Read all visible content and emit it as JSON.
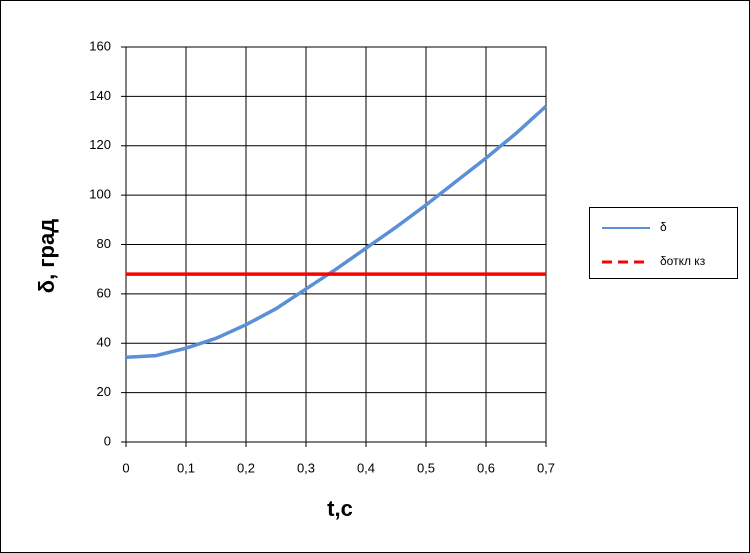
{
  "chart_data": {
    "type": "line",
    "x_label": "t,c",
    "y_label": "δ, град",
    "series": [
      {
        "name": "δ",
        "color": "#5b8fd6",
        "x": [
          0,
          0.05,
          0.1,
          0.15,
          0.2,
          0.25,
          0.3,
          0.35,
          0.4,
          0.45,
          0.5,
          0.55,
          0.6,
          0.65,
          0.7
        ],
        "values": [
          34.3,
          35,
          38,
          42,
          47.5,
          54,
          62,
          70,
          78.5,
          87,
          96,
          105.5,
          115,
          125,
          136
        ]
      },
      {
        "name": "δоткл кз",
        "color": "#ff0000",
        "x": [
          0,
          0.7
        ],
        "values": [
          68,
          68
        ]
      }
    ],
    "xlim": [
      0,
      0.7
    ],
    "xticks": [
      0,
      {
        "value": 0.1,
        "label": "0,1"
      },
      {
        "value": 0.2,
        "label": "0,2"
      },
      {
        "value": 0.3,
        "label": "0,3"
      },
      {
        "value": 0.4,
        "label": "0,4"
      },
      {
        "value": 0.5,
        "label": "0,5"
      },
      {
        "value": 0.6,
        "label": "0,6"
      },
      {
        "value": 0.7,
        "label": "0,7"
      }
    ],
    "ylim": [
      0,
      160
    ],
    "yticks": [
      0,
      20,
      40,
      60,
      80,
      100,
      120,
      140,
      160
    ],
    "grid": true,
    "legend": "right"
  }
}
